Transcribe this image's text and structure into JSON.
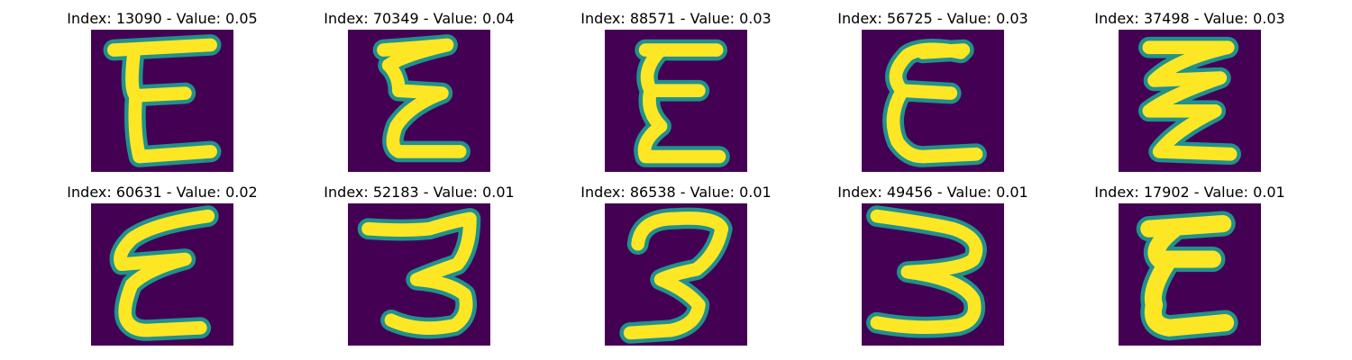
{
  "figure": {
    "background": "#ffffff",
    "colormap": {
      "low": "#440154",
      "mid": "#21918c",
      "high": "#fde725"
    },
    "panels": [
      {
        "title": "Index: 13090 - Value: 0.05",
        "index": 13090,
        "value": 0.05,
        "glyph": "E"
      },
      {
        "title": "Index: 70349 - Value: 0.04",
        "index": 70349,
        "value": 0.04,
        "glyph": "E"
      },
      {
        "title": "Index: 88571 - Value: 0.03",
        "index": 88571,
        "value": 0.03,
        "glyph": "E"
      },
      {
        "title": "Index: 56725 - Value: 0.03",
        "index": 56725,
        "value": 0.03,
        "glyph": "E"
      },
      {
        "title": "Index: 37498 - Value: 0.03",
        "index": 37498,
        "value": 0.03,
        "glyph": "E"
      },
      {
        "title": "Index: 60631 - Value: 0.02",
        "index": 60631,
        "value": 0.02,
        "glyph": "E"
      },
      {
        "title": "Index: 52183 - Value: 0.01",
        "index": 52183,
        "value": 0.01,
        "glyph": "3"
      },
      {
        "title": "Index: 86538 - Value: 0.01",
        "index": 86538,
        "value": 0.01,
        "glyph": "3"
      },
      {
        "title": "Index: 49456 - Value: 0.01",
        "index": 49456,
        "value": 0.01,
        "glyph": "3"
      },
      {
        "title": "Index: 17902 - Value: 0.01",
        "index": 17902,
        "value": 0.01,
        "glyph": "E"
      }
    ]
  }
}
